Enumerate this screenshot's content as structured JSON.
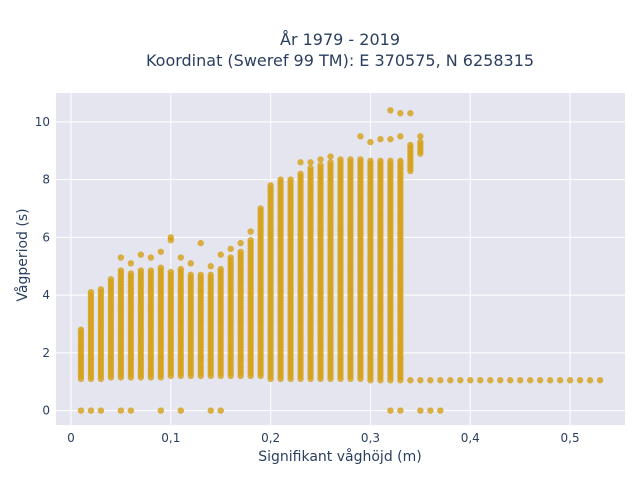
{
  "chart_data": {
    "type": "scatter",
    "title": "År 1979 - 2019",
    "subtitle": "Koordinat (Sweref 99 TM): E 370575, N 6258315",
    "xlabel": "Signifikant våghöjd (m)",
    "ylabel": "Vågperiod (s)",
    "xlim": [
      -0.015,
      0.555
    ],
    "ylim": [
      -0.5,
      11.0
    ],
    "x_ticks": [
      0,
      0.1,
      0.2,
      0.3,
      0.4,
      0.5
    ],
    "x_tick_labels": [
      "0",
      "0,1",
      "0,2",
      "0,3",
      "0,4",
      "0,5"
    ],
    "y_ticks": [
      0,
      2,
      4,
      6,
      8,
      10
    ],
    "y_tick_labels": [
      "0",
      "2",
      "4",
      "6",
      "8",
      "10"
    ],
    "grid": true,
    "legend": "none",
    "colors": {
      "marker": "#d4a017",
      "plot_bg": "#e5e5f0",
      "grid": "#ffffff",
      "text": "#2a3f5f"
    },
    "series": [
      {
        "x_step": 0.01,
        "columns": [
          {
            "x": 0.01,
            "ranges": [
              [
                1.1,
                2.8
              ]
            ],
            "extra": [
              0
            ]
          },
          {
            "x": 0.02,
            "ranges": [
              [
                1.1,
                4.1
              ]
            ],
            "extra": [
              0
            ]
          },
          {
            "x": 0.03,
            "ranges": [
              [
                1.1,
                4.2
              ]
            ],
            "extra": [
              0
            ]
          },
          {
            "x": 0.04,
            "ranges": [
              [
                1.15,
                4.6
              ]
            ],
            "extra": []
          },
          {
            "x": 0.05,
            "ranges": [
              [
                1.15,
                4.9
              ]
            ],
            "extra": [
              5.3,
              0
            ]
          },
          {
            "x": 0.06,
            "ranges": [
              [
                1.15,
                4.8
              ]
            ],
            "extra": [
              5.1,
              0
            ]
          },
          {
            "x": 0.07,
            "ranges": [
              [
                1.15,
                4.9
              ]
            ],
            "extra": [
              5.4
            ]
          },
          {
            "x": 0.08,
            "ranges": [
              [
                1.15,
                4.9
              ]
            ],
            "extra": [
              5.3
            ]
          },
          {
            "x": 0.09,
            "ranges": [
              [
                1.15,
                5.0
              ]
            ],
            "extra": [
              5.5,
              0
            ]
          },
          {
            "x": 0.1,
            "ranges": [
              [
                1.2,
                4.8
              ]
            ],
            "extra": [
              5.9,
              6.0
            ]
          },
          {
            "x": 0.11,
            "ranges": [
              [
                1.2,
                4.9
              ]
            ],
            "extra": [
              5.3,
              0
            ]
          },
          {
            "x": 0.12,
            "ranges": [
              [
                1.2,
                4.7
              ]
            ],
            "extra": [
              5.1
            ]
          },
          {
            "x": 0.13,
            "ranges": [
              [
                1.2,
                4.7
              ]
            ],
            "extra": [
              5.8
            ]
          },
          {
            "x": 0.14,
            "ranges": [
              [
                1.2,
                4.7
              ]
            ],
            "extra": [
              5.0,
              0
            ]
          },
          {
            "x": 0.15,
            "ranges": [
              [
                1.2,
                4.9
              ]
            ],
            "extra": [
              5.4,
              0
            ]
          },
          {
            "x": 0.16,
            "ranges": [
              [
                1.2,
                5.3
              ]
            ],
            "extra": [
              5.6
            ]
          },
          {
            "x": 0.17,
            "ranges": [
              [
                1.2,
                5.5
              ]
            ],
            "extra": [
              5.8
            ]
          },
          {
            "x": 0.18,
            "ranges": [
              [
                1.2,
                5.9
              ]
            ],
            "extra": [
              6.2
            ]
          },
          {
            "x": 0.19,
            "ranges": [
              [
                1.2,
                7.0
              ]
            ],
            "extra": []
          },
          {
            "x": 0.2,
            "ranges": [
              [
                1.1,
                7.8
              ]
            ],
            "extra": []
          },
          {
            "x": 0.21,
            "ranges": [
              [
                1.1,
                8.0
              ]
            ],
            "extra": []
          },
          {
            "x": 0.22,
            "ranges": [
              [
                1.1,
                8.0
              ]
            ],
            "extra": []
          },
          {
            "x": 0.23,
            "ranges": [
              [
                1.1,
                8.2
              ]
            ],
            "extra": [
              8.6
            ]
          },
          {
            "x": 0.24,
            "ranges": [
              [
                1.1,
                8.4
              ]
            ],
            "extra": [
              8.6
            ]
          },
          {
            "x": 0.25,
            "ranges": [
              [
                1.1,
                8.5
              ]
            ],
            "extra": [
              8.7
            ]
          },
          {
            "x": 0.26,
            "ranges": [
              [
                1.1,
                8.6
              ]
            ],
            "extra": [
              8.8
            ]
          },
          {
            "x": 0.27,
            "ranges": [
              [
                1.1,
                8.7
              ]
            ],
            "extra": []
          },
          {
            "x": 0.28,
            "ranges": [
              [
                1.1,
                8.7
              ]
            ],
            "extra": []
          },
          {
            "x": 0.29,
            "ranges": [
              [
                1.1,
                8.7
              ]
            ],
            "extra": [
              9.5
            ]
          },
          {
            "x": 0.3,
            "ranges": [
              [
                1.05,
                8.7
              ]
            ],
            "extra": [
              9.3
            ]
          },
          {
            "x": 0.31,
            "ranges": [
              [
                1.05,
                8.7
              ]
            ],
            "extra": [
              9.4
            ]
          },
          {
            "x": 0.32,
            "ranges": [
              [
                1.05,
                8.7
              ]
            ],
            "extra": [
              9.4,
              10.4,
              0
            ]
          },
          {
            "x": 0.33,
            "ranges": [
              [
                1.05,
                8.7
              ]
            ],
            "extra": [
              9.5,
              10.3,
              0
            ]
          },
          {
            "x": 0.34,
            "ranges": [
              [
                1.05,
                1.05
              ],
              [
                8.3,
                9.2
              ]
            ],
            "extra": [
              10.3
            ]
          },
          {
            "x": 0.35,
            "ranges": [
              [
                1.05,
                1.05
              ],
              [
                8.9,
                9.3
              ]
            ],
            "extra": [
              9.5,
              0
            ]
          },
          {
            "x": 0.36,
            "ranges": [
              [
                1.05,
                1.05
              ]
            ],
            "extra": [
              0
            ]
          },
          {
            "x": 0.37,
            "ranges": [
              [
                1.05,
                1.05
              ]
            ],
            "extra": [
              0
            ]
          },
          {
            "x": 0.38,
            "ranges": [
              [
                1.05,
                1.05
              ]
            ],
            "extra": []
          },
          {
            "x": 0.39,
            "ranges": [
              [
                1.05,
                1.05
              ]
            ],
            "extra": []
          },
          {
            "x": 0.4,
            "ranges": [
              [
                1.05,
                1.05
              ]
            ],
            "extra": []
          },
          {
            "x": 0.41,
            "ranges": [
              [
                1.05,
                1.05
              ]
            ],
            "extra": []
          },
          {
            "x": 0.42,
            "ranges": [
              [
                1.05,
                1.05
              ]
            ],
            "extra": []
          },
          {
            "x": 0.43,
            "ranges": [
              [
                1.05,
                1.05
              ]
            ],
            "extra": []
          },
          {
            "x": 0.44,
            "ranges": [
              [
                1.05,
                1.05
              ]
            ],
            "extra": []
          },
          {
            "x": 0.45,
            "ranges": [
              [
                1.05,
                1.05
              ]
            ],
            "extra": []
          },
          {
            "x": 0.46,
            "ranges": [
              [
                1.05,
                1.05
              ]
            ],
            "extra": []
          },
          {
            "x": 0.47,
            "ranges": [
              [
                1.05,
                1.05
              ]
            ],
            "extra": []
          },
          {
            "x": 0.48,
            "ranges": [
              [
                1.05,
                1.05
              ]
            ],
            "extra": []
          },
          {
            "x": 0.49,
            "ranges": [
              [
                1.05,
                1.05
              ]
            ],
            "extra": []
          },
          {
            "x": 0.5,
            "ranges": [
              [
                1.05,
                1.05
              ]
            ],
            "extra": []
          },
          {
            "x": 0.51,
            "ranges": [
              [
                1.05,
                1.05
              ]
            ],
            "extra": []
          },
          {
            "x": 0.52,
            "ranges": [
              [
                1.05,
                1.05
              ]
            ],
            "extra": []
          },
          {
            "x": 0.53,
            "ranges": [
              [
                1.05,
                1.05
              ]
            ],
            "extra": []
          }
        ]
      }
    ]
  }
}
